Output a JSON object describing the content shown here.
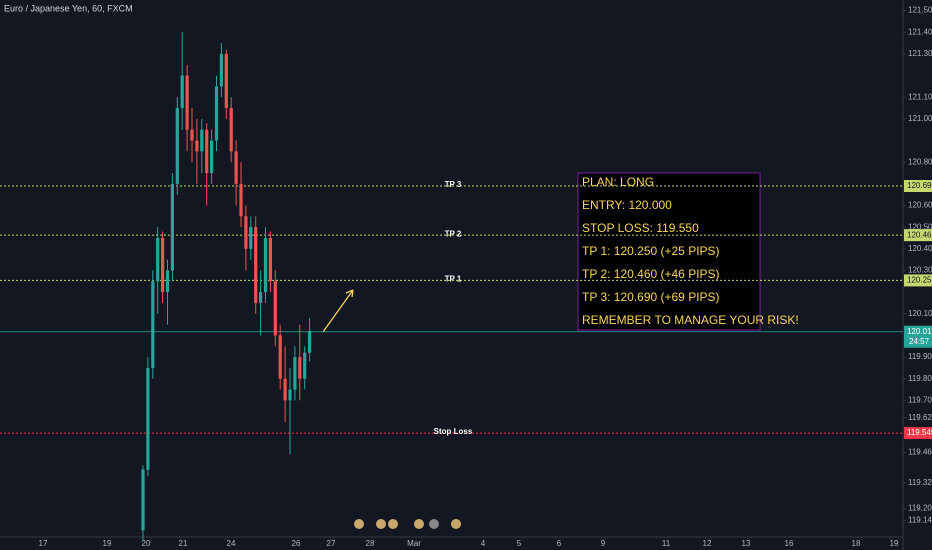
{
  "chart_data": {
    "type": "candlestick",
    "title": "Euro / Japanese Yen, 60, FXCM",
    "ylim": [
      119.069,
      121.549
    ],
    "yticks": [
      {
        "value": 121.5,
        "label": "121.500"
      },
      {
        "value": 121.4,
        "label": "121.400"
      },
      {
        "value": 121.3,
        "label": "121.300"
      },
      {
        "value": 121.1,
        "label": "121.100"
      },
      {
        "value": 121.0,
        "label": "121.000"
      },
      {
        "value": 120.8,
        "label": "120.800"
      },
      {
        "value": 120.6,
        "label": "120.600"
      },
      {
        "value": 120.5,
        "label": "120.500"
      },
      {
        "value": 120.4,
        "label": "120.400"
      },
      {
        "value": 120.3,
        "label": "120.300"
      },
      {
        "value": 120.1,
        "label": "120.100"
      },
      {
        "value": 119.9,
        "label": "119.900"
      },
      {
        "value": 119.8,
        "label": "119.800"
      },
      {
        "value": 119.7,
        "label": "119.700"
      },
      {
        "value": 119.62,
        "label": "119.620"
      },
      {
        "value": 119.46,
        "label": "119.460"
      },
      {
        "value": 119.32,
        "label": "119.320"
      },
      {
        "value": 119.2,
        "label": "119.200"
      },
      {
        "value": 119.145,
        "label": "119.145"
      }
    ],
    "x_axis_labels": [
      "17",
      "19",
      "20",
      "21",
      "24",
      "26",
      "27",
      "28",
      "Mar",
      "4",
      "5",
      "6",
      "9",
      "11",
      "12",
      "13",
      "16",
      "18",
      "19"
    ],
    "up_color": "#26a69a",
    "down_color": "#ef5350",
    "open": [
      119.1,
      119.38,
      119.85,
      120.25,
      120.45,
      120.2,
      120.3,
      120.7,
      121.05,
      121.2,
      120.95,
      120.9,
      120.85,
      120.95,
      120.75,
      120.9,
      121.15,
      121.3,
      121.05,
      120.85,
      120.7,
      120.55,
      120.4,
      120.5,
      120.15,
      120.2,
      120.45,
      120.25,
      120.0,
      119.8,
      119.7,
      119.75,
      119.9,
      119.8,
      119.92
    ],
    "high": [
      119.4,
      119.9,
      120.3,
      120.5,
      120.48,
      120.35,
      120.75,
      121.1,
      121.4,
      121.25,
      121.05,
      121.0,
      121.0,
      120.98,
      120.95,
      121.2,
      121.35,
      121.32,
      121.1,
      120.9,
      120.8,
      120.6,
      120.55,
      120.55,
      120.3,
      120.5,
      120.48,
      120.3,
      120.05,
      119.95,
      119.85,
      119.95,
      120.05,
      119.95,
      120.08
    ],
    "low": [
      119.05,
      119.35,
      119.8,
      120.1,
      120.15,
      120.05,
      120.25,
      120.65,
      120.95,
      120.85,
      120.8,
      120.7,
      120.75,
      120.6,
      120.7,
      120.85,
      121.1,
      121.0,
      120.8,
      120.6,
      120.5,
      120.3,
      120.35,
      120.1,
      120.0,
      120.15,
      120.2,
      119.95,
      119.75,
      119.6,
      119.45,
      119.7,
      119.7,
      119.75,
      119.88
    ],
    "close": [
      119.38,
      119.85,
      120.25,
      120.45,
      120.2,
      120.3,
      120.7,
      121.05,
      121.2,
      120.95,
      120.9,
      120.85,
      120.95,
      120.75,
      120.9,
      121.15,
      121.3,
      121.05,
      120.85,
      120.7,
      120.55,
      120.4,
      120.5,
      120.15,
      120.2,
      120.45,
      120.25,
      120.0,
      119.8,
      119.7,
      119.75,
      119.9,
      119.8,
      119.92,
      120.02
    ],
    "levels": [
      {
        "name": "TP 3",
        "value": 120.69,
        "label": "120.690",
        "color": "#c5d86d"
      },
      {
        "name": "TP 2",
        "value": 120.463,
        "label": "120.463",
        "color": "#c5d86d"
      },
      {
        "name": "TP 1",
        "value": 120.254,
        "label": "120.254",
        "color": "#c5d86d"
      },
      {
        "name": "Stop Loss",
        "value": 119.549,
        "label": "119.549",
        "color": "#f23645"
      }
    ],
    "current_price": {
      "value": 120.017,
      "label": "120.017",
      "countdown": "24:57",
      "color": "#26a69a"
    },
    "plan_notes": [
      "PLAN: LONG",
      "ENTRY: 120.000",
      "STOP LOSS: 119.550",
      "TP 1: 120.250 (+25 PIPS)",
      "TP 2: 120.460 (+46 PIPS)",
      "TP 3: 120.690 (+69 PIPS)",
      "REMEMBER TO MANAGE YOUR RISK!"
    ]
  }
}
